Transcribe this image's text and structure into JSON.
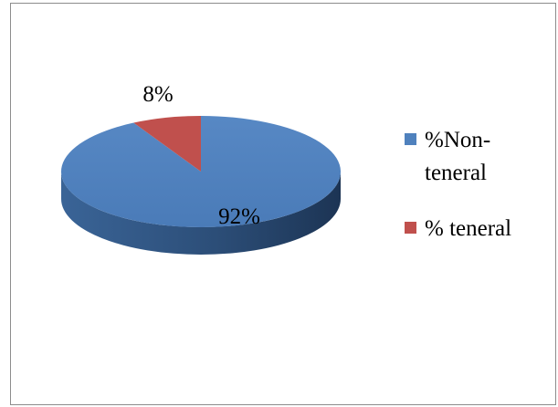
{
  "chart_data": {
    "type": "pie",
    "title": "",
    "three_d": true,
    "slices": [
      {
        "name": "%Non-teneral",
        "legend_lines": [
          "%Non-",
          "teneral"
        ],
        "value": 92,
        "label": "92%",
        "color": "#4f81bd"
      },
      {
        "name": "% teneral",
        "legend_lines": [
          "% teneral"
        ],
        "value": 8,
        "label": "8%",
        "color": "#c0504d"
      }
    ],
    "legend_position": "right"
  }
}
